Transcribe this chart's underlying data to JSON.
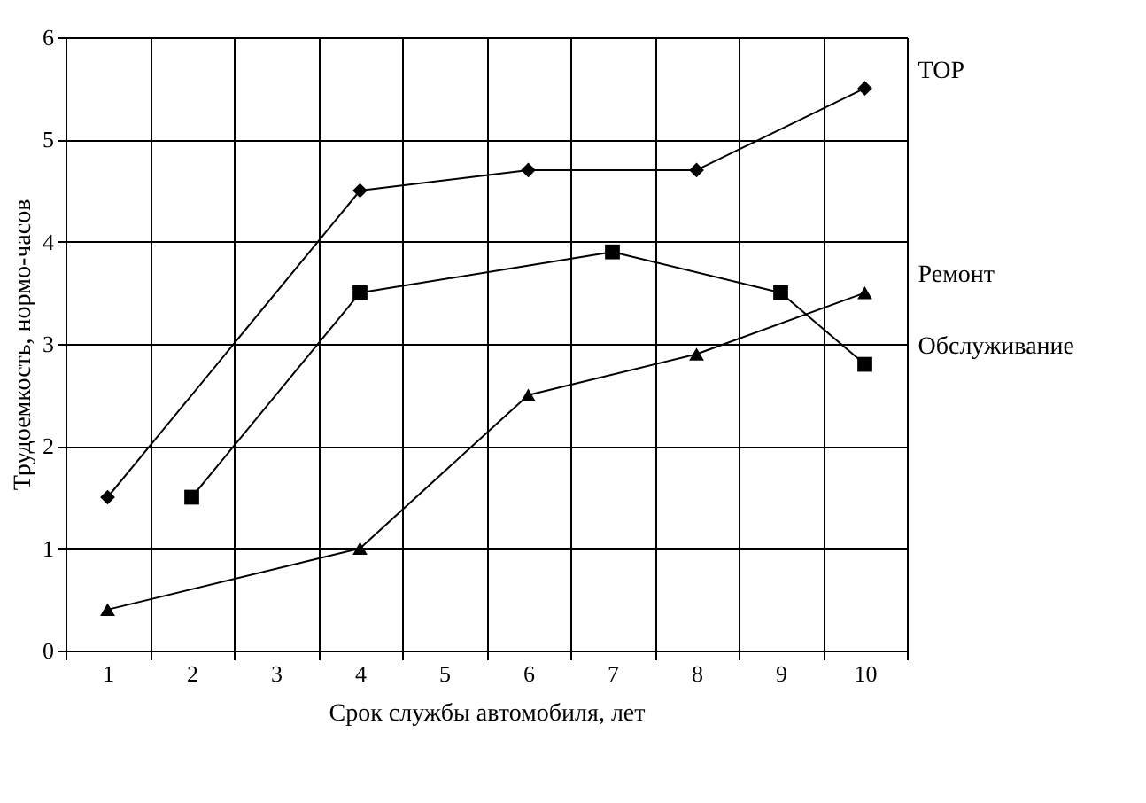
{
  "chart_data": {
    "type": "line",
    "categories": [
      "1",
      "2",
      "3",
      "4",
      "5",
      "6",
      "7",
      "8",
      "9",
      "10"
    ],
    "xlabel": "Срок службы автомобиля, лет",
    "ylabel": "Трудоемкость, нормо-часов",
    "ylim": [
      0,
      6
    ],
    "yticks": [
      0,
      1,
      2,
      3,
      4,
      5,
      6
    ],
    "grid": true,
    "legend": false,
    "series": [
      {
        "name": "ТОР",
        "color": "#000000",
        "marker": "diamond",
        "values": [
          1.5,
          null,
          null,
          4.5,
          null,
          4.7,
          null,
          4.7,
          null,
          5.5
        ]
      },
      {
        "name": "Ремонт",
        "color": "#000000",
        "marker": "triangle",
        "values": [
          0.4,
          null,
          null,
          1.0,
          null,
          2.5,
          null,
          2.9,
          null,
          3.5
        ]
      },
      {
        "name": "Обслуживание",
        "color": "#000000",
        "marker": "square",
        "values": [
          null,
          1.5,
          null,
          3.5,
          null,
          null,
          3.9,
          null,
          3.5,
          2.8
        ]
      }
    ]
  }
}
